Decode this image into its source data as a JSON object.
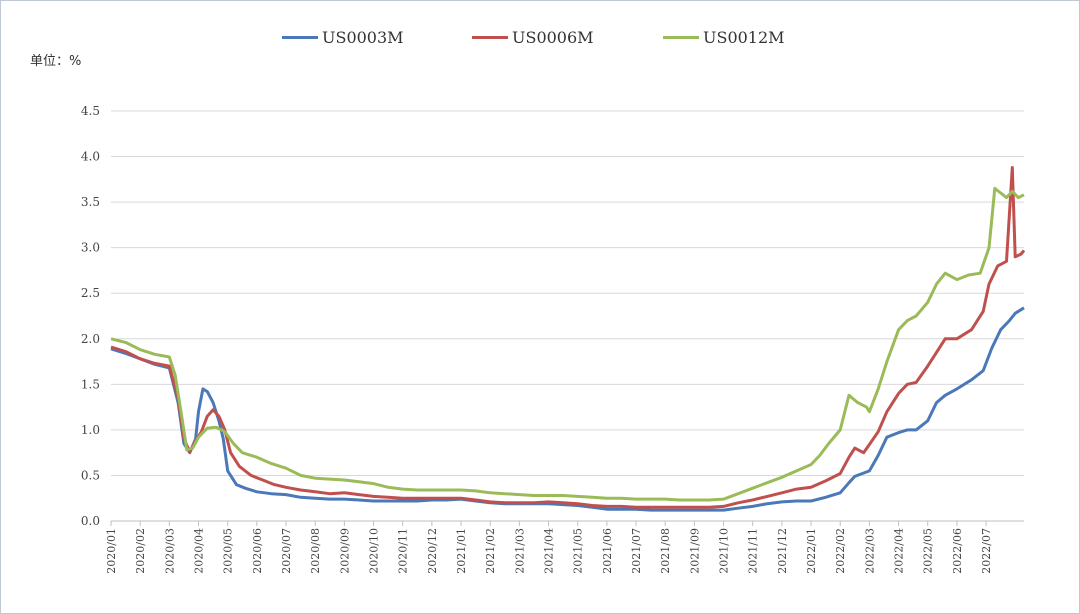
{
  "unit_label": "单位：%",
  "chart_data": {
    "type": "line",
    "title": "",
    "ylabel": "单位：%",
    "ylim": [
      0,
      4.5
    ],
    "yticks": [
      "0.0",
      "0.5",
      "1.0",
      "1.5",
      "2.0",
      "2.5",
      "3.0",
      "3.5",
      "4.0",
      "4.5"
    ],
    "x_ticks": [
      "2020/01",
      "2020/02",
      "2020/03",
      "2020/04",
      "2020/05",
      "2020/06",
      "2020/07",
      "2020/08",
      "2020/09",
      "2020/10",
      "2020/11",
      "2020/12",
      "2021/01",
      "2021/02",
      "2021/03",
      "2021/04",
      "2021/05",
      "2021/06",
      "2021/07",
      "2021/08",
      "2021/09",
      "2021/10",
      "2021/11",
      "2021/12",
      "2022/01",
      "2022/02",
      "2022/03",
      "2022/04",
      "2022/05",
      "2022/06",
      "2022/07"
    ],
    "grid": true,
    "legend": "top-center",
    "series": [
      {
        "name": "US0003M",
        "color": "#4a78b8",
        "points": [
          [
            0,
            1.89
          ],
          [
            0.5,
            1.84
          ],
          [
            1,
            1.78
          ],
          [
            1.5,
            1.72
          ],
          [
            2,
            1.68
          ],
          [
            2.3,
            1.3
          ],
          [
            2.5,
            0.85
          ],
          [
            2.7,
            0.75
          ],
          [
            2.9,
            0.9
          ],
          [
            3.0,
            1.2
          ],
          [
            3.15,
            1.45
          ],
          [
            3.3,
            1.42
          ],
          [
            3.5,
            1.3
          ],
          [
            3.7,
            1.1
          ],
          [
            3.85,
            0.9
          ],
          [
            4.0,
            0.55
          ],
          [
            4.3,
            0.4
          ],
          [
            4.6,
            0.36
          ],
          [
            5,
            0.32
          ],
          [
            5.5,
            0.3
          ],
          [
            6,
            0.29
          ],
          [
            6.5,
            0.26
          ],
          [
            7,
            0.25
          ],
          [
            7.5,
            0.24
          ],
          [
            8,
            0.24
          ],
          [
            8.5,
            0.23
          ],
          [
            9,
            0.22
          ],
          [
            9.5,
            0.22
          ],
          [
            10,
            0.22
          ],
          [
            10.5,
            0.22
          ],
          [
            11,
            0.23
          ],
          [
            11.5,
            0.23
          ],
          [
            12,
            0.24
          ],
          [
            12.5,
            0.22
          ],
          [
            13,
            0.2
          ],
          [
            13.5,
            0.19
          ],
          [
            14,
            0.19
          ],
          [
            14.5,
            0.19
          ],
          [
            15,
            0.19
          ],
          [
            15.5,
            0.18
          ],
          [
            16,
            0.17
          ],
          [
            16.5,
            0.15
          ],
          [
            17,
            0.13
          ],
          [
            17.5,
            0.13
          ],
          [
            18,
            0.13
          ],
          [
            18.5,
            0.12
          ],
          [
            19,
            0.12
          ],
          [
            19.5,
            0.12
          ],
          [
            20,
            0.12
          ],
          [
            20.5,
            0.12
          ],
          [
            21,
            0.12
          ],
          [
            21.5,
            0.14
          ],
          [
            22,
            0.16
          ],
          [
            22.5,
            0.19
          ],
          [
            23,
            0.21
          ],
          [
            23.5,
            0.22
          ],
          [
            24,
            0.22
          ],
          [
            24.5,
            0.26
          ],
          [
            25,
            0.31
          ],
          [
            25.3,
            0.42
          ],
          [
            25.5,
            0.49
          ],
          [
            26,
            0.55
          ],
          [
            26.3,
            0.72
          ],
          [
            26.6,
            0.92
          ],
          [
            27,
            0.97
          ],
          [
            27.3,
            1.0
          ],
          [
            27.6,
            1.0
          ],
          [
            28,
            1.1
          ],
          [
            28.3,
            1.3
          ],
          [
            28.6,
            1.38
          ],
          [
            29,
            1.45
          ],
          [
            29.5,
            1.55
          ],
          [
            29.9,
            1.65
          ],
          [
            30.2,
            1.9
          ],
          [
            30.5,
            2.1
          ],
          [
            30.8,
            2.2
          ],
          [
            31,
            2.28
          ],
          [
            31.3,
            2.34
          ]
        ]
      },
      {
        "name": "US0006M",
        "color": "#c0504d",
        "points": [
          [
            0,
            1.91
          ],
          [
            0.5,
            1.86
          ],
          [
            1,
            1.78
          ],
          [
            1.5,
            1.73
          ],
          [
            2,
            1.7
          ],
          [
            2.3,
            1.35
          ],
          [
            2.5,
            0.9
          ],
          [
            2.7,
            0.76
          ],
          [
            2.9,
            0.88
          ],
          [
            3.1,
            0.98
          ],
          [
            3.3,
            1.15
          ],
          [
            3.5,
            1.22
          ],
          [
            3.7,
            1.15
          ],
          [
            3.9,
            1.0
          ],
          [
            4.1,
            0.75
          ],
          [
            4.4,
            0.6
          ],
          [
            4.8,
            0.5
          ],
          [
            5.2,
            0.45
          ],
          [
            5.6,
            0.4
          ],
          [
            6,
            0.37
          ],
          [
            6.5,
            0.34
          ],
          [
            7,
            0.32
          ],
          [
            7.5,
            0.3
          ],
          [
            8,
            0.31
          ],
          [
            8.5,
            0.29
          ],
          [
            9,
            0.27
          ],
          [
            9.5,
            0.26
          ],
          [
            10,
            0.25
          ],
          [
            10.5,
            0.25
          ],
          [
            11,
            0.25
          ],
          [
            11.5,
            0.25
          ],
          [
            12,
            0.25
          ],
          [
            12.5,
            0.23
          ],
          [
            13,
            0.21
          ],
          [
            13.5,
            0.2
          ],
          [
            14,
            0.2
          ],
          [
            14.5,
            0.2
          ],
          [
            15,
            0.21
          ],
          [
            15.5,
            0.2
          ],
          [
            16,
            0.19
          ],
          [
            16.5,
            0.17
          ],
          [
            17,
            0.16
          ],
          [
            17.5,
            0.16
          ],
          [
            18,
            0.15
          ],
          [
            18.5,
            0.15
          ],
          [
            19,
            0.15
          ],
          [
            19.5,
            0.15
          ],
          [
            20,
            0.15
          ],
          [
            20.5,
            0.15
          ],
          [
            21,
            0.16
          ],
          [
            21.5,
            0.2
          ],
          [
            22,
            0.23
          ],
          [
            22.5,
            0.27
          ],
          [
            23,
            0.31
          ],
          [
            23.5,
            0.35
          ],
          [
            24,
            0.37
          ],
          [
            24.5,
            0.44
          ],
          [
            25,
            0.52
          ],
          [
            25.3,
            0.7
          ],
          [
            25.5,
            0.8
          ],
          [
            25.8,
            0.75
          ],
          [
            26,
            0.84
          ],
          [
            26.3,
            0.98
          ],
          [
            26.6,
            1.2
          ],
          [
            27,
            1.4
          ],
          [
            27.3,
            1.5
          ],
          [
            27.6,
            1.52
          ],
          [
            28,
            1.7
          ],
          [
            28.3,
            1.85
          ],
          [
            28.6,
            2.0
          ],
          [
            29,
            2.0
          ],
          [
            29.5,
            2.1
          ],
          [
            29.9,
            2.3
          ],
          [
            30.1,
            2.6
          ],
          [
            30.4,
            2.8
          ],
          [
            30.7,
            2.85
          ],
          [
            30.9,
            3.88
          ],
          [
            31.0,
            2.9
          ],
          [
            31.2,
            2.93
          ],
          [
            31.3,
            2.97
          ]
        ]
      },
      {
        "name": "US0012M",
        "color": "#9bbb59",
        "points": [
          [
            0,
            2.0
          ],
          [
            0.5,
            1.96
          ],
          [
            1,
            1.88
          ],
          [
            1.5,
            1.83
          ],
          [
            2,
            1.8
          ],
          [
            2.2,
            1.6
          ],
          [
            2.4,
            1.2
          ],
          [
            2.6,
            0.78
          ],
          [
            2.8,
            0.8
          ],
          [
            3.0,
            0.92
          ],
          [
            3.3,
            1.02
          ],
          [
            3.6,
            1.03
          ],
          [
            3.9,
            0.98
          ],
          [
            4.2,
            0.85
          ],
          [
            4.5,
            0.75
          ],
          [
            5,
            0.7
          ],
          [
            5.5,
            0.63
          ],
          [
            6,
            0.58
          ],
          [
            6.5,
            0.5
          ],
          [
            7,
            0.47
          ],
          [
            7.5,
            0.46
          ],
          [
            8,
            0.45
          ],
          [
            8.5,
            0.43
          ],
          [
            9,
            0.41
          ],
          [
            9.5,
            0.37
          ],
          [
            10,
            0.35
          ],
          [
            10.5,
            0.34
          ],
          [
            11,
            0.34
          ],
          [
            11.5,
            0.34
          ],
          [
            12,
            0.34
          ],
          [
            12.5,
            0.33
          ],
          [
            13,
            0.31
          ],
          [
            13.5,
            0.3
          ],
          [
            14,
            0.29
          ],
          [
            14.5,
            0.28
          ],
          [
            15,
            0.28
          ],
          [
            15.5,
            0.28
          ],
          [
            16,
            0.27
          ],
          [
            16.5,
            0.26
          ],
          [
            17,
            0.25
          ],
          [
            17.5,
            0.25
          ],
          [
            18,
            0.24
          ],
          [
            18.5,
            0.24
          ],
          [
            19,
            0.24
          ],
          [
            19.5,
            0.23
          ],
          [
            20,
            0.23
          ],
          [
            20.5,
            0.23
          ],
          [
            21,
            0.24
          ],
          [
            21.5,
            0.3
          ],
          [
            22,
            0.36
          ],
          [
            22.5,
            0.42
          ],
          [
            23,
            0.48
          ],
          [
            23.5,
            0.55
          ],
          [
            24,
            0.62
          ],
          [
            24.3,
            0.72
          ],
          [
            24.6,
            0.85
          ],
          [
            25,
            1.0
          ],
          [
            25.3,
            1.38
          ],
          [
            25.6,
            1.3
          ],
          [
            25.9,
            1.25
          ],
          [
            26,
            1.2
          ],
          [
            26.3,
            1.45
          ],
          [
            26.6,
            1.75
          ],
          [
            27,
            2.1
          ],
          [
            27.3,
            2.2
          ],
          [
            27.6,
            2.25
          ],
          [
            28,
            2.4
          ],
          [
            28.3,
            2.6
          ],
          [
            28.6,
            2.72
          ],
          [
            29,
            2.65
          ],
          [
            29.4,
            2.7
          ],
          [
            29.8,
            2.72
          ],
          [
            30.1,
            3.0
          ],
          [
            30.3,
            3.65
          ],
          [
            30.5,
            3.6
          ],
          [
            30.7,
            3.55
          ],
          [
            30.9,
            3.62
          ],
          [
            31.1,
            3.55
          ],
          [
            31.3,
            3.58
          ]
        ]
      }
    ]
  }
}
